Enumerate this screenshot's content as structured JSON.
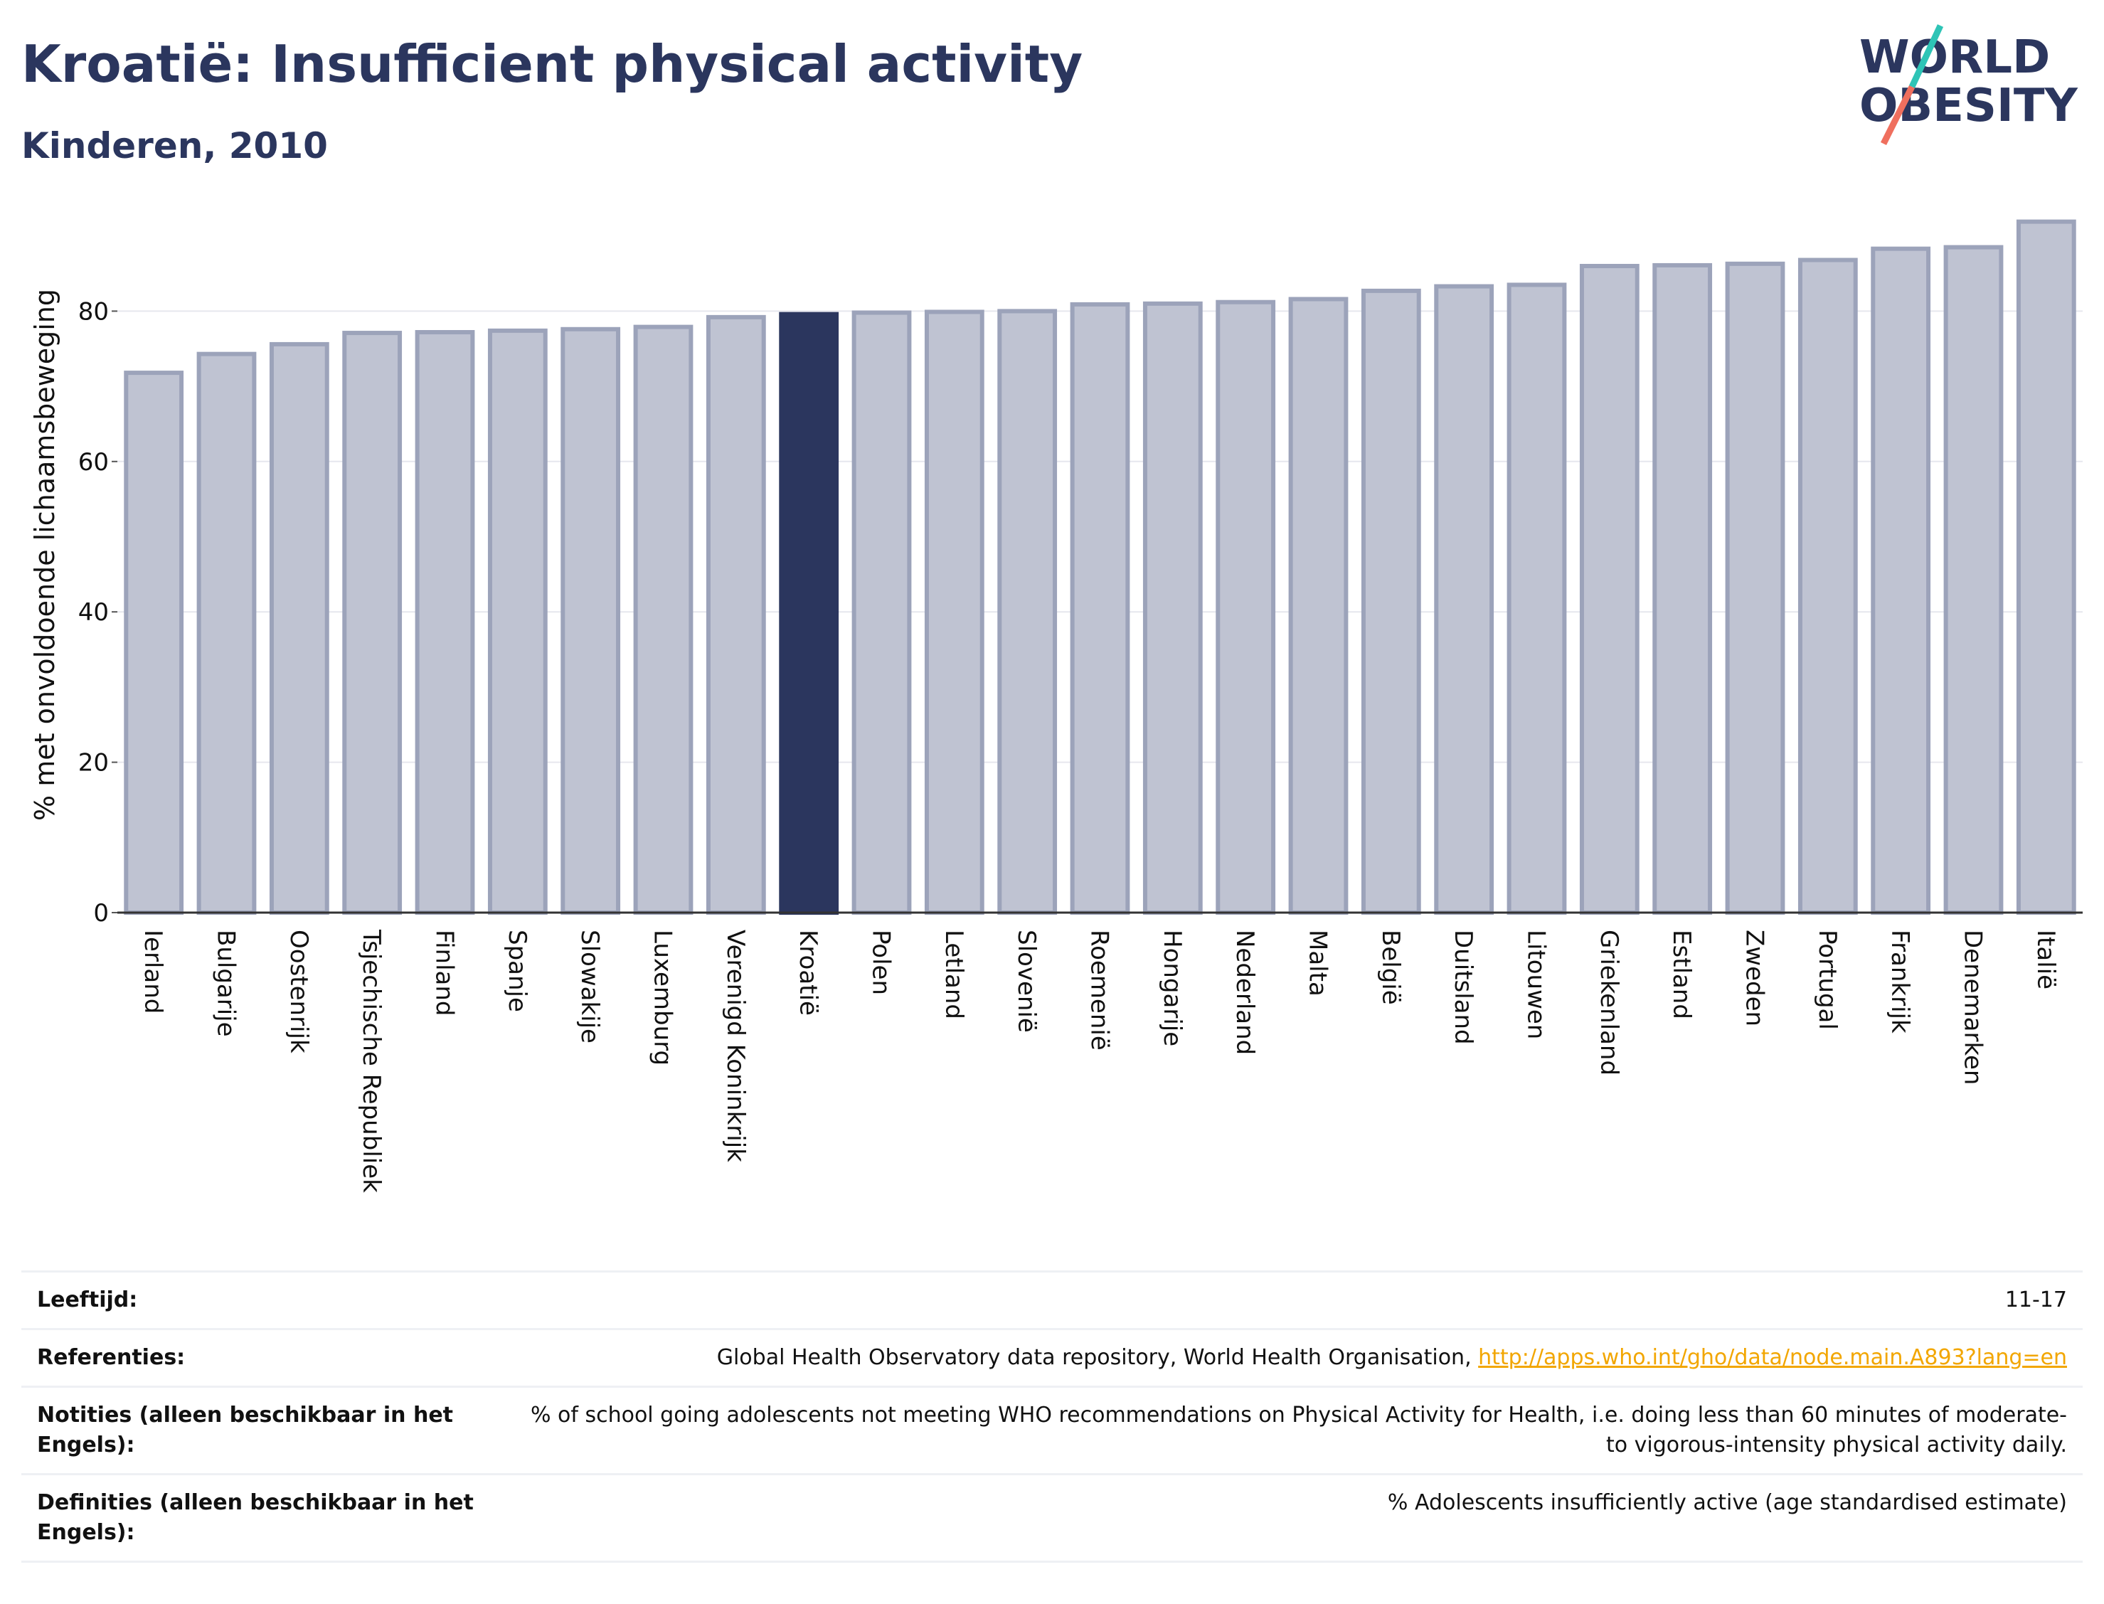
{
  "header": {
    "title": "Kroatië: Insufficient physical activity",
    "subtitle": "Kinderen, 2010"
  },
  "logo": {
    "line1": "WORLD",
    "line2": "OBESITY"
  },
  "colors": {
    "bar": "#bfc3d2",
    "bar_stroke": "#9ca3ba",
    "highlight": "#2b365e",
    "text": "#2b365e",
    "grid": "#e6e7ee",
    "logo_teal": "#2ec4b6",
    "logo_coral": "#ef6f5e",
    "link": "#f2a600"
  },
  "chart_data": {
    "type": "bar",
    "ylabel": "% met onvoldoende lichaamsbeweging",
    "xlabel": "",
    "ylim": [
      0,
      93
    ],
    "yticks": [
      0,
      20,
      40,
      60,
      80
    ],
    "grid": true,
    "highlight": "Kroatië",
    "categories": [
      "Ierland",
      "Bulgarije",
      "Oostenrijk",
      "Tsjechische Republiek",
      "Finland",
      "Spanje",
      "Slowakije",
      "Luxemburg",
      "Verenigd Koninkrijk",
      "Kroatië",
      "Polen",
      "Letland",
      "Slovenië",
      "Roemenië",
      "Hongarije",
      "Nederland",
      "Malta",
      "België",
      "Duitsland",
      "Litouwen",
      "Griekenland",
      "Estland",
      "Zweden",
      "Portugal",
      "Frankrijk",
      "Denemarken",
      "Italië"
    ],
    "values": [
      71.8,
      74.3,
      75.6,
      77.1,
      77.2,
      77.4,
      77.6,
      77.9,
      79.2,
      79.6,
      79.8,
      79.9,
      80.0,
      80.9,
      81.0,
      81.2,
      81.6,
      82.7,
      83.3,
      83.5,
      86.0,
      86.1,
      86.3,
      86.8,
      88.3,
      88.5,
      91.9
    ]
  },
  "info": [
    {
      "label": "Leeftijd:",
      "value": "11-17"
    },
    {
      "label": "Referenties:",
      "value": "Global Health Observatory data repository, World Health Organisation, ",
      "link": "http://apps.who.int/gho/data/node.main.A893?lang=en"
    },
    {
      "label": "Notities (alleen beschikbaar in het Engels):",
      "value": "% of school going adolescents not meeting WHO recommendations on Physical Activity for Health, i.e. doing less than 60 minutes of moderate- to vigorous-intensity physical activity daily."
    },
    {
      "label": "Definities (alleen beschikbaar in het Engels):",
      "value": "% Adolescents insufficiently active (age standardised estimate)"
    }
  ]
}
